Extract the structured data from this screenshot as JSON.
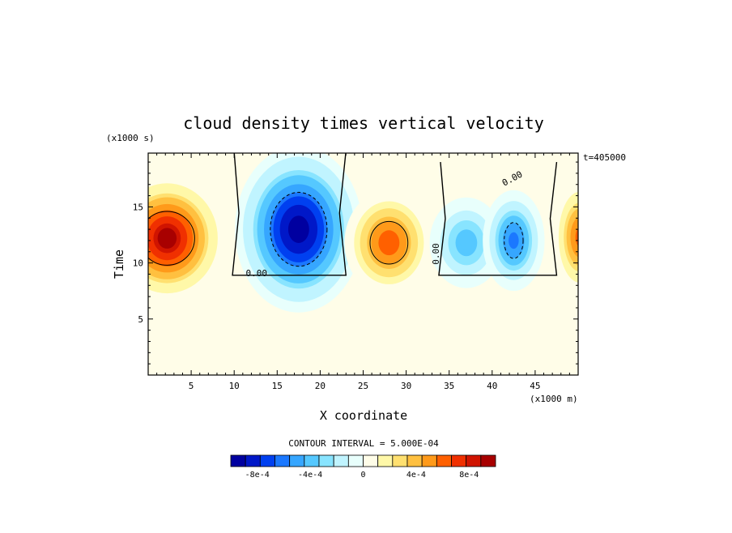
{
  "chart_data": {
    "type": "heatmap",
    "title": "cloud density times vertical velocity",
    "xlabel": "X coordinate",
    "ylabel": "Time",
    "x_unit": "(x1000 m)",
    "y_unit": "(x1000 s)",
    "annotation": "t=405000",
    "contour_interval_label": "CONTOUR INTERVAL = 5.000E-04",
    "xlim": [
      0,
      50
    ],
    "ylim": [
      0,
      19.8
    ],
    "x_ticks": [
      5,
      10,
      15,
      20,
      25,
      30,
      35,
      40,
      45
    ],
    "y_ticks": [
      5,
      10,
      15
    ],
    "contour_labels": [
      "0.00",
      "0.00",
      "0.00"
    ],
    "colorbar": {
      "vmin": -0.001,
      "vmax": 0.001,
      "colors": [
        "#0000a0",
        "#0018c8",
        "#0040f0",
        "#1b78ff",
        "#36a6ff",
        "#55c8ff",
        "#88e4ff",
        "#c0f4ff",
        "#e8fffc",
        "#fffde8",
        "#fff8a8",
        "#ffe070",
        "#ffc040",
        "#ff9a1a",
        "#ff6000",
        "#f03000",
        "#d01400",
        "#a80000"
      ],
      "tick_labels": [
        "-8e-4",
        "-4e-4",
        "0",
        "4e-4",
        "8e-4"
      ]
    },
    "features": [
      {
        "x": 2.2,
        "t": 12.2,
        "value": 0.00095,
        "sx": 3.0,
        "st": 2.5
      },
      {
        "x": 17.5,
        "t": 13.0,
        "value": -0.001,
        "sx": 3.3,
        "st": 3.3
      },
      {
        "x": 28.0,
        "t": 11.8,
        "value": 0.00065,
        "sx": 2.3,
        "st": 2.1
      },
      {
        "x": 37.0,
        "t": 11.8,
        "value": -0.00042,
        "sx": 1.9,
        "st": 1.8
      },
      {
        "x": 42.5,
        "t": 12.0,
        "value": -0.0006,
        "sx": 1.6,
        "st": 2.0
      },
      {
        "x": 50.2,
        "t": 12.3,
        "value": 0.0006,
        "sx": 1.4,
        "st": 2.3
      }
    ]
  }
}
